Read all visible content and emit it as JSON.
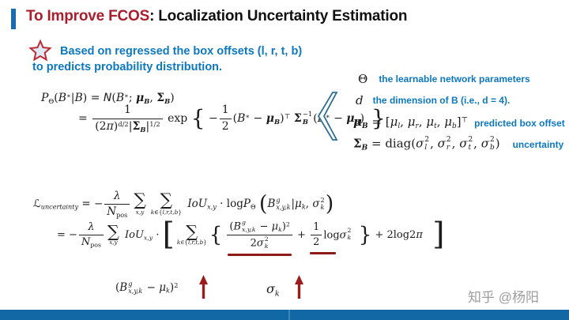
{
  "header": {
    "title_red": "To Improve FCOS",
    "title_black": ": Localization Uncertainty Estimation"
  },
  "bullet": {
    "line1": "Based on regressed the box offsets (l, r, t, b)",
    "line2": "to predicts probability distribution."
  },
  "colors": {
    "title_red": "#a81e2d",
    "accent_blue_bar": "#1a6bad",
    "note_blue": "#0d78bf",
    "underline_red": "#8e1b1b",
    "arrow_red": "#9b1c1c",
    "bottom_bar_blue": "#1268a5",
    "watermark_gray": "#9e9e9e"
  },
  "icons": {
    "star": "star-outline-icon",
    "chevron": "big-left-angle-bracket",
    "arrow": "up-arrow-icon"
  },
  "gaussian": {
    "line1": [
      {
        "t": "P",
        "c": "it"
      },
      {
        "t": "Θ",
        "c": "sub"
      },
      {
        "t": "("
      },
      {
        "t": "B",
        "c": "it"
      },
      {
        "t": "∗",
        "c": "sup"
      },
      {
        "t": "|"
      },
      {
        "t": "B",
        "c": "it"
      },
      {
        "t": ") = "
      },
      {
        "t": "N",
        "c": "cal"
      },
      {
        "t": "("
      },
      {
        "t": "B",
        "c": "it"
      },
      {
        "t": "∗",
        "c": "sup"
      },
      {
        "t": "; "
      },
      {
        "t": "μ",
        "c": "bi"
      },
      {
        "t": "B",
        "c": "sub bi"
      },
      {
        "t": ", "
      },
      {
        "t": "Σ",
        "c": "b"
      },
      {
        "t": "B",
        "c": "sub bi"
      },
      {
        "t": ")"
      }
    ],
    "line2": [
      {
        "t": "= "
      },
      {
        "frac": {
          "num": [
            {
              "t": "1"
            }
          ],
          "den": [
            {
              "t": "(2"
            },
            {
              "t": "π",
              "c": "it"
            },
            {
              "t": ")"
            },
            {
              "t": "d/2",
              "c": "sup"
            },
            {
              "t": "|"
            },
            {
              "t": "Σ",
              "c": "b"
            },
            {
              "t": "B",
              "c": "sub bi"
            },
            {
              "t": "|"
            },
            {
              "t": "1/2",
              "c": "sup"
            }
          ]
        }
      },
      {
        "t": " exp "
      },
      {
        "t": "{",
        "c": "big2"
      },
      {
        "t": " −"
      },
      {
        "frac": {
          "num": [
            {
              "t": "1"
            }
          ],
          "den": [
            {
              "t": "2"
            }
          ]
        }
      },
      {
        "t": "("
      },
      {
        "t": "B",
        "c": "it"
      },
      {
        "t": "∗",
        "c": "sup"
      },
      {
        "t": " − "
      },
      {
        "t": "μ",
        "c": "bi"
      },
      {
        "t": "B",
        "c": "sub bi"
      },
      {
        "t": ")"
      },
      {
        "t": "⊤",
        "c": "sup"
      },
      {
        "t": " "
      },
      {
        "t": "Σ",
        "c": "b"
      },
      {
        "ss": {
          "sup": [
            {
              "t": "−1"
            }
          ],
          "sub": [
            {
              "t": "B",
              "c": "bi"
            }
          ]
        }
      },
      {
        "t": "("
      },
      {
        "t": "B",
        "c": "it"
      },
      {
        "t": "∗",
        "c": "sup"
      },
      {
        "t": " − "
      },
      {
        "t": "μ",
        "c": "bi"
      },
      {
        "t": "B",
        "c": "sub bi"
      },
      {
        "t": ")"
      },
      {
        "t": " }",
        "c": "big2"
      }
    ]
  },
  "legend": {
    "rows": [
      {
        "sym": [
          {
            "t": "Θ"
          }
        ],
        "desc": "the learnable network parameters"
      },
      {
        "sym": [
          {
            "t": "d",
            "c": "it"
          }
        ],
        "desc": "the dimension of B (i.e., d = 4)."
      },
      {
        "sym": [
          {
            "t": "μ",
            "c": "bi"
          },
          {
            "t": "B",
            "c": "sub bi"
          },
          {
            "t": " = ["
          },
          {
            "t": "μ",
            "c": "it"
          },
          {
            "t": "l",
            "c": "sub it"
          },
          {
            "t": ", "
          },
          {
            "t": "μ",
            "c": "it"
          },
          {
            "t": "r",
            "c": "sub it"
          },
          {
            "t": ", "
          },
          {
            "t": "μ",
            "c": "it"
          },
          {
            "t": "t",
            "c": "sub it"
          },
          {
            "t": ", "
          },
          {
            "t": "μ",
            "c": "it"
          },
          {
            "t": "b",
            "c": "sub it"
          },
          {
            "t": "]"
          },
          {
            "t": "⊤",
            "c": "sup"
          }
        ],
        "desc": "predicted box offset"
      },
      {
        "sym": [
          {
            "t": "Σ",
            "c": "b"
          },
          {
            "t": "B",
            "c": "sub bi"
          },
          {
            "t": " = diag("
          },
          {
            "t": "σ",
            "c": "it"
          },
          {
            "ss": {
              "sup": [
                {
                  "t": "2"
                }
              ],
              "sub": [
                {
                  "t": "l",
                  "c": "it"
                }
              ]
            }
          },
          {
            "t": ", "
          },
          {
            "t": "σ",
            "c": "it"
          },
          {
            "ss": {
              "sup": [
                {
                  "t": "2"
                }
              ],
              "sub": [
                {
                  "t": "r",
                  "c": "it"
                }
              ]
            }
          },
          {
            "t": ", "
          },
          {
            "t": "σ",
            "c": "it"
          },
          {
            "ss": {
              "sup": [
                {
                  "t": "2"
                }
              ],
              "sub": [
                {
                  "t": "t",
                  "c": "it"
                }
              ]
            }
          },
          {
            "t": ", "
          },
          {
            "t": "σ",
            "c": "it"
          },
          {
            "ss": {
              "sup": [
                {
                  "t": "2"
                }
              ],
              "sub": [
                {
                  "t": "b",
                  "c": "it"
                }
              ]
            }
          },
          {
            "t": ")"
          }
        ],
        "desc": "uncertainty"
      }
    ]
  },
  "loss": {
    "line1": [
      {
        "t": "ℒ",
        "c": "cal"
      },
      {
        "t": "uncertainty",
        "c": "sub it"
      },
      {
        "t": " = −"
      },
      {
        "frac": {
          "num": [
            {
              "t": "λ",
              "c": "it"
            }
          ],
          "den": [
            {
              "t": "N",
              "c": "it"
            },
            {
              "t": "pos",
              "c": "sub"
            }
          ]
        }
      },
      {
        "sum": {
          "op": "∑",
          "lim": [
            {
              "t": "x,y",
              "c": "it"
            }
          ]
        }
      },
      {
        "sum": {
          "op": "∑",
          "lim": [
            {
              "t": "k",
              "c": "it"
            },
            {
              "t": "∈{"
            },
            {
              "t": "l,r,t,b",
              "c": "it"
            },
            {
              "t": "}"
            }
          ]
        }
      },
      {
        "t": " "
      },
      {
        "t": "IoU",
        "c": "it"
      },
      {
        "t": "x,y",
        "c": "sub it"
      },
      {
        "t": " · log"
      },
      {
        "t": "P",
        "c": "it"
      },
      {
        "t": "Θ",
        "c": "sub"
      },
      {
        "t": " "
      },
      {
        "t": "(",
        "c": "big2"
      },
      {
        "t": "B",
        "c": "it"
      },
      {
        "ss": {
          "sup": [
            {
              "t": "g",
              "c": "it"
            }
          ],
          "sub": [
            {
              "t": "x,y,k",
              "c": "it"
            }
          ]
        }
      },
      {
        "t": "|"
      },
      {
        "t": "μ",
        "c": "it"
      },
      {
        "t": "k",
        "c": "sub it"
      },
      {
        "t": ", "
      },
      {
        "t": "σ",
        "c": "it"
      },
      {
        "ss": {
          "sup": [
            {
              "t": "2"
            }
          ],
          "sub": [
            {
              "t": "k",
              "c": "it"
            }
          ]
        }
      },
      {
        "t": ")",
        "c": "big2"
      }
    ],
    "line2": [
      {
        "t": "= −"
      },
      {
        "frac": {
          "num": [
            {
              "t": "λ",
              "c": "it"
            }
          ],
          "den": [
            {
              "t": "N",
              "c": "it"
            },
            {
              "t": "pos",
              "c": "sub"
            }
          ]
        }
      },
      {
        "sum": {
          "op": "∑",
          "lim": [
            {
              "t": "x,y",
              "c": "it"
            }
          ]
        }
      },
      {
        "t": " "
      },
      {
        "t": "IoU",
        "c": "it"
      },
      {
        "t": "x,y",
        "c": "sub it"
      },
      {
        "t": " · "
      },
      {
        "t": "[",
        "c": "big3"
      },
      {
        "sum": {
          "op": "∑",
          "lim": [
            {
              "t": "k",
              "c": "it"
            },
            {
              "t": "∈{"
            },
            {
              "t": "l,r,t,b",
              "c": "it"
            },
            {
              "t": "}"
            }
          ]
        }
      },
      {
        "t": "{",
        "c": "big2"
      },
      {
        "t": " "
      },
      {
        "u": [
          {
            "frac": {
              "num": [
                {
                  "t": "("
                },
                {
                  "t": "B",
                  "c": "it"
                },
                {
                  "ss": {
                    "sup": [
                      {
                        "t": "g",
                        "c": "it"
                      }
                    ],
                    "sub": [
                      {
                        "t": "x,y,k",
                        "c": "it"
                      }
                    ]
                  }
                },
                {
                  "t": " − "
                },
                {
                  "t": "μ",
                  "c": "it"
                },
                {
                  "t": "k",
                  "c": "sub it"
                },
                {
                  "t": ")"
                },
                {
                  "t": "2",
                  "c": "sup"
                }
              ],
              "den": [
                {
                  "t": "2"
                },
                {
                  "t": "σ",
                  "c": "it"
                },
                {
                  "ss": {
                    "sup": [
                      {
                        "t": "2"
                      }
                    ],
                    "sub": [
                      {
                        "t": "k",
                        "c": "it"
                      }
                    ]
                  }
                }
              ]
            }
          }
        ]
      },
      {
        "t": " + "
      },
      {
        "u2": [
          {
            "frac": {
              "num": [
                {
                  "t": "1"
                }
              ],
              "den": [
                {
                  "t": "2"
                }
              ]
            }
          },
          {
            "t": "log"
          },
          {
            "t": "σ",
            "c": "it"
          },
          {
            "ss": {
              "sup": [
                {
                  "t": "2"
                }
              ],
              "sub": [
                {
                  "t": "k",
                  "c": "it"
                }
              ]
            }
          }
        ]
      },
      {
        "t": " }",
        "c": "big2"
      },
      {
        "t": " + 2log2"
      },
      {
        "t": "π",
        "c": "it"
      },
      {
        "t": " ]",
        "c": "big3"
      }
    ]
  },
  "annotations": {
    "left_term": [
      {
        "t": "("
      },
      {
        "t": "B",
        "c": "it"
      },
      {
        "ss": {
          "sup": [
            {
              "t": "g",
              "c": "it"
            }
          ],
          "sub": [
            {
              "t": "x,y,k",
              "c": "it"
            }
          ]
        }
      },
      {
        "t": " − "
      },
      {
        "t": "μ",
        "c": "it"
      },
      {
        "t": "k",
        "c": "sub it"
      },
      {
        "t": ")"
      },
      {
        "t": "2",
        "c": "sup"
      }
    ],
    "right_term": [
      {
        "t": "σ",
        "c": "it"
      },
      {
        "t": "k",
        "c": "sub it"
      }
    ]
  },
  "watermark": "知乎 @杨阳"
}
